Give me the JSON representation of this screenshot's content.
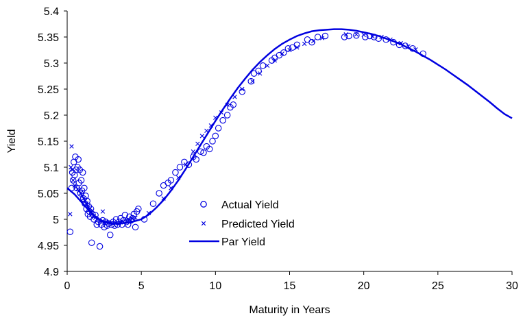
{
  "chart_data": {
    "type": "scatter",
    "title": "",
    "xlabel": "Maturity in Years",
    "ylabel": "Yield",
    "xlim": [
      0,
      30
    ],
    "ylim": [
      4.9,
      5.4
    ],
    "xticks": [
      "0",
      "5",
      "10",
      "15",
      "20",
      "25",
      "30"
    ],
    "yticks": [
      "4.9",
      "4.95",
      "5",
      "5.05",
      "5.1",
      "5.15",
      "5.2",
      "5.25",
      "5.3",
      "5.35",
      "5.4"
    ],
    "grid": false,
    "legend_position": "lower-center",
    "color": "#0000e0",
    "series": [
      {
        "name": "Actual Yield",
        "marker": "circle",
        "points": [
          [
            0.2,
            4.976
          ],
          [
            0.3,
            5.06
          ],
          [
            0.35,
            5.09
          ],
          [
            0.4,
            5.075
          ],
          [
            0.45,
            5.11
          ],
          [
            0.5,
            5.085
          ],
          [
            0.55,
            5.12
          ],
          [
            0.6,
            5.095
          ],
          [
            0.65,
            5.06
          ],
          [
            0.7,
            5.1
          ],
          [
            0.75,
            5.115
          ],
          [
            0.8,
            5.07
          ],
          [
            0.85,
            5.095
          ],
          [
            0.9,
            5.05
          ],
          [
            0.95,
            5.075
          ],
          [
            1.0,
            5.055
          ],
          [
            1.05,
            5.09
          ],
          [
            1.1,
            5.04
          ],
          [
            1.15,
            5.06
          ],
          [
            1.2,
            5.03
          ],
          [
            1.25,
            5.045
          ],
          [
            1.3,
            5.02
          ],
          [
            1.35,
            5.035
          ],
          [
            1.4,
            5.01
          ],
          [
            1.45,
            5.025
          ],
          [
            1.5,
            5.015
          ],
          [
            1.55,
            5.005
          ],
          [
            1.6,
            5.02
          ],
          [
            1.65,
            4.955
          ],
          [
            1.7,
            5.01
          ],
          [
            1.8,
            5.0
          ],
          [
            1.9,
            5.008
          ],
          [
            2.0,
            4.99
          ],
          [
            2.1,
            4.995
          ],
          [
            2.2,
            4.948
          ],
          [
            2.3,
            4.99
          ],
          [
            2.4,
            4.998
          ],
          [
            2.5,
            4.985
          ],
          [
            2.6,
            4.995
          ],
          [
            2.7,
            4.988
          ],
          [
            2.8,
            4.992
          ],
          [
            2.9,
            4.97
          ],
          [
            3.0,
            4.99
          ],
          [
            3.1,
            4.995
          ],
          [
            3.2,
            4.988
          ],
          [
            3.3,
            5.0
          ],
          [
            3.4,
            4.99
          ],
          [
            3.5,
            4.995
          ],
          [
            3.6,
            5.002
          ],
          [
            3.7,
            4.99
          ],
          [
            3.8,
            4.998
          ],
          [
            3.9,
            5.008
          ],
          [
            4.0,
            4.995
          ],
          [
            4.1,
            4.99
          ],
          [
            4.2,
            5.005
          ],
          [
            4.3,
            4.998
          ],
          [
            4.4,
            5.002
          ],
          [
            4.5,
            5.01
          ],
          [
            4.6,
            4.985
          ],
          [
            4.7,
            5.015
          ],
          [
            4.8,
            5.02
          ],
          [
            5.2,
            5.0
          ],
          [
            5.8,
            5.03
          ],
          [
            6.2,
            5.05
          ],
          [
            6.5,
            5.065
          ],
          [
            6.8,
            5.07
          ],
          [
            7.0,
            5.075
          ],
          [
            7.3,
            5.09
          ],
          [
            7.6,
            5.1
          ],
          [
            7.9,
            5.11
          ],
          [
            8.2,
            5.105
          ],
          [
            8.5,
            5.12
          ],
          [
            8.7,
            5.115
          ],
          [
            9.0,
            5.13
          ],
          [
            9.2,
            5.128
          ],
          [
            9.4,
            5.14
          ],
          [
            9.6,
            5.135
          ],
          [
            9.8,
            5.15
          ],
          [
            10.0,
            5.16
          ],
          [
            10.2,
            5.175
          ],
          [
            10.5,
            5.19
          ],
          [
            10.8,
            5.2
          ],
          [
            11.0,
            5.215
          ],
          [
            11.2,
            5.22
          ],
          [
            11.8,
            5.245
          ],
          [
            12.4,
            5.265
          ],
          [
            12.6,
            5.28
          ],
          [
            12.9,
            5.285
          ],
          [
            13.2,
            5.295
          ],
          [
            13.8,
            5.305
          ],
          [
            14.0,
            5.31
          ],
          [
            14.3,
            5.315
          ],
          [
            14.6,
            5.32
          ],
          [
            14.9,
            5.328
          ],
          [
            15.2,
            5.33
          ],
          [
            15.5,
            5.335
          ],
          [
            16.2,
            5.345
          ],
          [
            16.5,
            5.34
          ],
          [
            16.9,
            5.35
          ],
          [
            17.4,
            5.352
          ],
          [
            18.7,
            5.35
          ],
          [
            19.0,
            5.352
          ],
          [
            19.5,
            5.353
          ],
          [
            20.1,
            5.35
          ],
          [
            20.4,
            5.352
          ],
          [
            20.7,
            5.35
          ],
          [
            21.0,
            5.347
          ],
          [
            21.5,
            5.345
          ],
          [
            22.0,
            5.34
          ],
          [
            22.4,
            5.335
          ],
          [
            22.8,
            5.333
          ],
          [
            23.3,
            5.328
          ],
          [
            24.0,
            5.318
          ]
        ]
      },
      {
        "name": "Predicted Yield",
        "marker": "x",
        "points": [
          [
            0.2,
            5.01
          ],
          [
            0.25,
            5.1
          ],
          [
            0.3,
            5.14
          ],
          [
            0.35,
            5.095
          ],
          [
            0.4,
            5.075
          ],
          [
            0.5,
            5.065
          ],
          [
            0.6,
            5.062
          ],
          [
            0.7,
            5.058
          ],
          [
            0.8,
            5.055
          ],
          [
            0.9,
            5.05
          ],
          [
            1.0,
            5.045
          ],
          [
            1.1,
            5.04
          ],
          [
            1.2,
            5.035
          ],
          [
            1.3,
            5.03
          ],
          [
            1.4,
            5.025
          ],
          [
            1.5,
            5.02
          ],
          [
            1.6,
            5.015
          ],
          [
            1.7,
            5.01
          ],
          [
            1.8,
            5.006
          ],
          [
            1.9,
            5.003
          ],
          [
            2.0,
            5.0
          ],
          [
            2.2,
            4.997
          ],
          [
            2.4,
            5.015
          ],
          [
            2.6,
            4.995
          ],
          [
            2.8,
            4.994
          ],
          [
            3.0,
            4.993
          ],
          [
            3.2,
            4.993
          ],
          [
            3.4,
            4.993
          ],
          [
            3.6,
            4.994
          ],
          [
            3.8,
            4.995
          ],
          [
            4.0,
            4.997
          ],
          [
            4.2,
            4.999
          ],
          [
            4.4,
            5.001
          ],
          [
            4.6,
            5.003
          ],
          [
            5.5,
            5.012
          ],
          [
            6.5,
            5.04
          ],
          [
            7.0,
            5.06
          ],
          [
            7.5,
            5.08
          ],
          [
            8.0,
            5.105
          ],
          [
            8.5,
            5.13
          ],
          [
            8.8,
            5.145
          ],
          [
            9.1,
            5.16
          ],
          [
            9.4,
            5.17
          ],
          [
            9.7,
            5.18
          ],
          [
            10.0,
            5.195
          ],
          [
            10.4,
            5.205
          ],
          [
            10.8,
            5.22
          ],
          [
            11.3,
            5.235
          ],
          [
            11.8,
            5.25
          ],
          [
            12.5,
            5.265
          ],
          [
            13.0,
            5.28
          ],
          [
            13.5,
            5.295
          ],
          [
            14.0,
            5.305
          ],
          [
            14.5,
            5.318
          ],
          [
            15.0,
            5.325
          ],
          [
            15.5,
            5.33
          ],
          [
            16.0,
            5.337
          ],
          [
            16.6,
            5.342
          ],
          [
            17.2,
            5.348
          ],
          [
            18.8,
            5.355
          ],
          [
            19.5,
            5.355
          ],
          [
            20.0,
            5.354
          ],
          [
            20.6,
            5.351
          ],
          [
            21.2,
            5.35
          ],
          [
            21.8,
            5.345
          ],
          [
            22.5,
            5.338
          ],
          [
            23.0,
            5.332
          ],
          [
            23.5,
            5.326
          ]
        ]
      },
      {
        "name": "Par Yield",
        "marker": "line",
        "points": [
          [
            0,
            5.06
          ],
          [
            0.5,
            5.048
          ],
          [
            1,
            5.032
          ],
          [
            1.5,
            5.016
          ],
          [
            2,
            5.003
          ],
          [
            2.5,
            4.995
          ],
          [
            3,
            4.992
          ],
          [
            3.5,
            4.992
          ],
          [
            4,
            4.993
          ],
          [
            4.5,
            4.996
          ],
          [
            5,
            5.0
          ],
          [
            5.5,
            5.009
          ],
          [
            6,
            5.022
          ],
          [
            6.5,
            5.037
          ],
          [
            7,
            5.055
          ],
          [
            7.5,
            5.075
          ],
          [
            8,
            5.097
          ],
          [
            8.5,
            5.12
          ],
          [
            9,
            5.143
          ],
          [
            9.5,
            5.166
          ],
          [
            10,
            5.189
          ],
          [
            10.5,
            5.211
          ],
          [
            11,
            5.232
          ],
          [
            11.5,
            5.252
          ],
          [
            12,
            5.27
          ],
          [
            12.5,
            5.287
          ],
          [
            13,
            5.302
          ],
          [
            13.5,
            5.315
          ],
          [
            14,
            5.327
          ],
          [
            14.5,
            5.337
          ],
          [
            15,
            5.345
          ],
          [
            15.5,
            5.352
          ],
          [
            16,
            5.357
          ],
          [
            16.5,
            5.361
          ],
          [
            17,
            5.363
          ],
          [
            17.5,
            5.364
          ],
          [
            18,
            5.365
          ],
          [
            18.5,
            5.365
          ],
          [
            19,
            5.364
          ],
          [
            19.5,
            5.362
          ],
          [
            20,
            5.359
          ],
          [
            20.5,
            5.356
          ],
          [
            21,
            5.352
          ],
          [
            21.5,
            5.347
          ],
          [
            22,
            5.342
          ],
          [
            22.5,
            5.336
          ],
          [
            23,
            5.329
          ],
          [
            23.5,
            5.322
          ],
          [
            24,
            5.314
          ],
          [
            24.5,
            5.306
          ],
          [
            25,
            5.297
          ],
          [
            25.5,
            5.288
          ],
          [
            26,
            5.278
          ],
          [
            26.5,
            5.268
          ],
          [
            27,
            5.258
          ],
          [
            27.5,
            5.247
          ],
          [
            28,
            5.236
          ],
          [
            28.5,
            5.225
          ],
          [
            29,
            5.213
          ],
          [
            29.5,
            5.202
          ],
          [
            30,
            5.194
          ]
        ]
      }
    ]
  }
}
